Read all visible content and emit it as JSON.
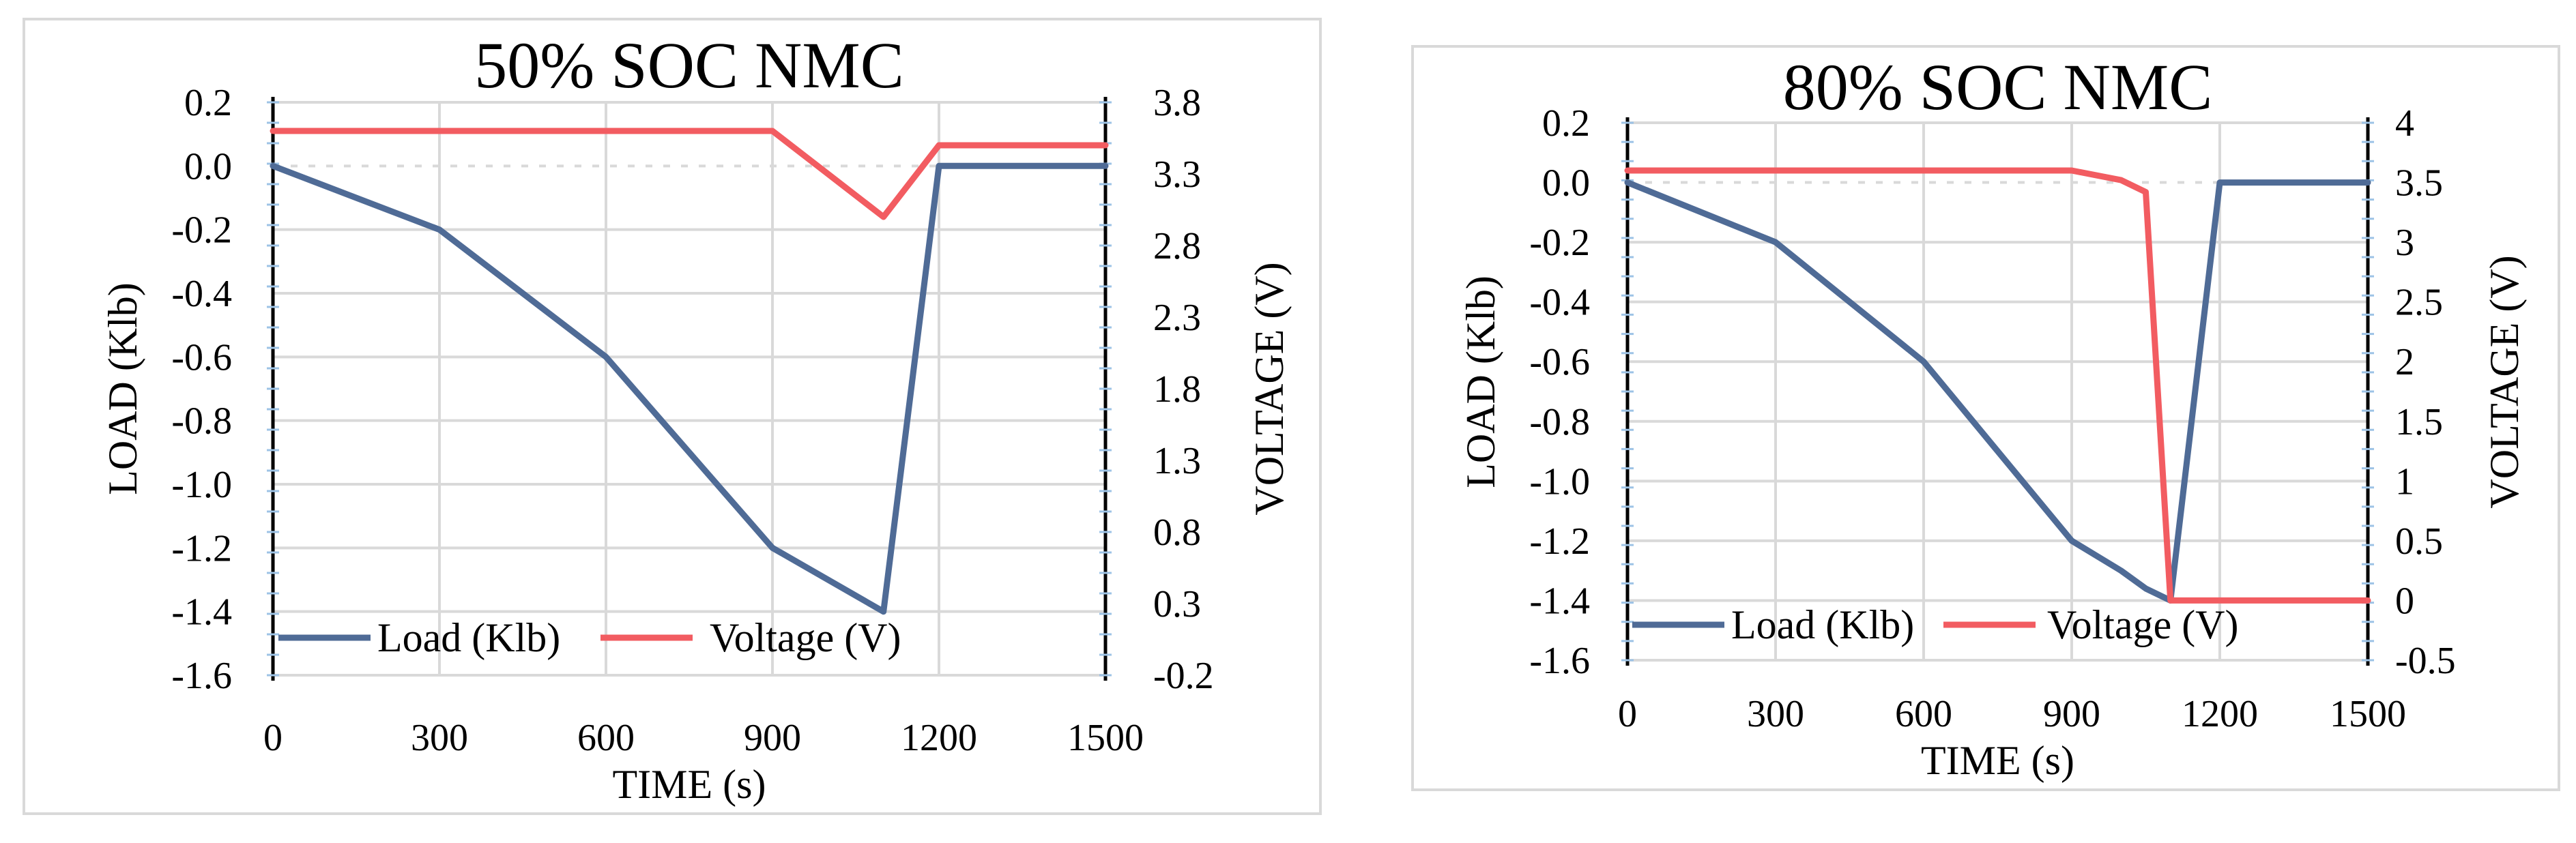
{
  "chart_data": [
    {
      "type": "line",
      "title": "50% SOC NMC",
      "xlabel": "TIME (s)",
      "ylabel": "LOAD (Klb)",
      "y2label": "VOLTAGE (V)",
      "xlim": [
        0,
        1500
      ],
      "ylim": [
        -1.6,
        0.2
      ],
      "y2lim": [
        -0.2,
        3.8
      ],
      "x_ticks": [
        "0",
        "300",
        "600",
        "900",
        "1200",
        "1500"
      ],
      "y_ticks": [
        "0.2",
        "0.0",
        "-0.2",
        "-0.4",
        "-0.6",
        "-0.8",
        "-1.0",
        "-1.2",
        "-1.4",
        "-1.6"
      ],
      "y2_ticks": [
        "3.8",
        "3.3",
        "2.8",
        "2.3",
        "1.8",
        "1.3",
        "0.8",
        "0.3",
        "-0.2"
      ],
      "legend_position": "bottom-left",
      "series": [
        {
          "name": "Load (Klb)",
          "axis": "left",
          "color": "#4f6b96",
          "x": [
            0,
            300,
            600,
            900,
            1100,
            1200,
            1500
          ],
          "y": [
            0.0,
            -0.2,
            -0.6,
            -1.2,
            -1.4,
            0.0,
            0.0
          ]
        },
        {
          "name": "Voltage (V)",
          "axis": "right",
          "color": "#f25c61",
          "x": [
            0,
            900,
            1100,
            1200,
            1500
          ],
          "y": [
            3.6,
            3.6,
            3.0,
            3.5,
            3.5
          ]
        }
      ]
    },
    {
      "type": "line",
      "title": "80% SOC NMC",
      "xlabel": "TIME (s)",
      "ylabel": "LOAD (Klb)",
      "y2label": "VOLTAGE (V)",
      "xlim": [
        0,
        1500
      ],
      "ylim": [
        -1.6,
        0.2
      ],
      "y2lim": [
        -0.5,
        4
      ],
      "x_ticks": [
        "0",
        "300",
        "600",
        "900",
        "1200",
        "1500"
      ],
      "y_ticks": [
        "0.2",
        "0.0",
        "-0.2",
        "-0.4",
        "-0.6",
        "-0.8",
        "-1.0",
        "-1.2",
        "-1.4",
        "-1.6"
      ],
      "y2_ticks": [
        "4",
        "3.5",
        "3",
        "2.5",
        "2",
        "1.5",
        "1",
        "0.5",
        "0",
        "-0.5"
      ],
      "legend_position": "bottom-left",
      "series": [
        {
          "name": "Load (Klb)",
          "axis": "left",
          "color": "#4f6b96",
          "x": [
            0,
            300,
            600,
            900,
            1000,
            1050,
            1100,
            1200,
            1500
          ],
          "y": [
            0.0,
            -0.2,
            -0.6,
            -1.2,
            -1.3,
            -1.36,
            -1.4,
            0.0,
            0.0
          ]
        },
        {
          "name": "Voltage (V)",
          "axis": "right",
          "color": "#f25c61",
          "x": [
            0,
            900,
            1000,
            1050,
            1100,
            1500
          ],
          "y": [
            3.6,
            3.6,
            3.52,
            3.42,
            0.0,
            0.0
          ]
        }
      ]
    }
  ]
}
